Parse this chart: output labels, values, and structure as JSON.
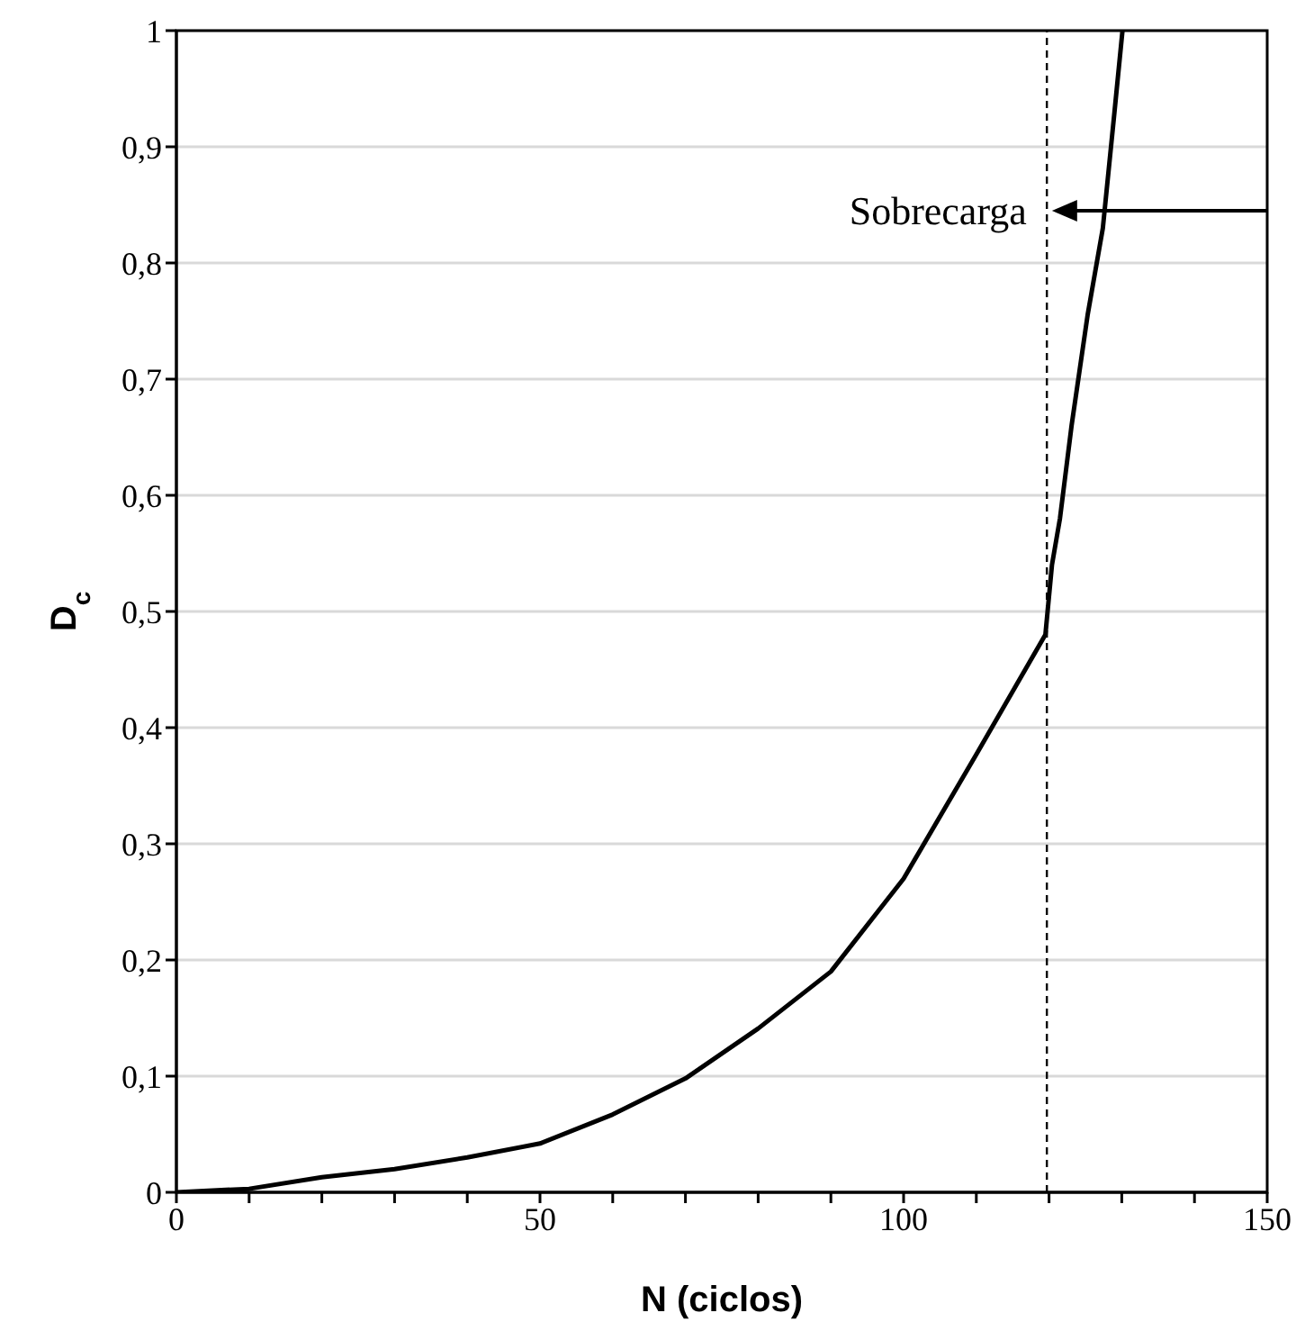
{
  "chart_data": {
    "type": "line",
    "xlabel": "N (ciclos)",
    "ylabel": "D$_{c}$",
    "x": [
      0,
      10,
      20,
      30,
      40,
      50,
      60,
      70,
      80,
      90,
      100,
      110,
      119.5,
      120.4,
      121.5,
      123.1,
      125.3,
      127.4,
      129,
      130.1
    ],
    "series": [
      {
        "color": "#000000",
        "values": [
          0,
          0.003,
          0.013,
          0.02,
          0.03,
          0.042,
          0.067,
          0.098,
          0.141,
          0.19,
          0.27,
          0.377,
          0.48,
          0.54,
          0.58,
          0.66,
          0.755,
          0.83,
          0.93,
          1
        ]
      }
    ],
    "xlim": [
      0,
      150
    ],
    "xticks": [
      0,
      {
        "value": 10,
        "label": null
      },
      {
        "value": 20,
        "label": null
      },
      {
        "value": 30,
        "label": null
      },
      {
        "value": 40,
        "label": null
      },
      50,
      {
        "value": 60,
        "label": null
      },
      {
        "value": 70,
        "label": null
      },
      {
        "value": 80,
        "label": null
      },
      {
        "value": 90,
        "label": null
      },
      100,
      {
        "value": 110,
        "label": null
      },
      {
        "value": 120,
        "label": null
      },
      {
        "value": 130,
        "label": null
      },
      {
        "value": 140,
        "label": null
      },
      150
    ],
    "ylim": [
      0,
      1
    ],
    "yticks": [
      0,
      {
        "value": 0.1,
        "label": "0,1"
      },
      {
        "value": 0.2,
        "label": "0,2"
      },
      {
        "value": 0.3,
        "label": "0,3"
      },
      {
        "value": 0.4,
        "label": "0,4"
      },
      {
        "value": 0.5,
        "label": "0,5"
      },
      {
        "value": 0.6,
        "label": "0,6"
      },
      {
        "value": 0.7,
        "label": "0,7"
      },
      {
        "value": 0.8,
        "label": "0,8"
      },
      {
        "value": 0.9,
        "label": "0,9"
      },
      1
    ],
    "grid": "y",
    "marker": "none",
    "line_style": "solid",
    "ref_lines": [
      {
        "axis": "x",
        "value": 119.7,
        "color": "#000000",
        "line_style": "dashed"
      }
    ],
    "annotations": [
      {
        "text": "Sobrecarga",
        "x": 120.4,
        "y": 0.845
      }
    ]
  }
}
